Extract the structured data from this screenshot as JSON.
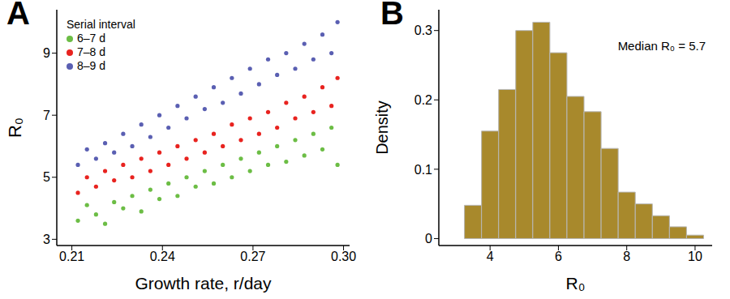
{
  "chart_data": [
    {
      "type": "scatter",
      "title": "A",
      "xlabel": "Growth rate, r/day",
      "ylabel": "R₀",
      "legend": "upper left",
      "legend_title": "Serial interval",
      "xlim": [
        0.205,
        0.302
      ],
      "xticks": [
        0.21,
        0.24,
        0.27,
        {
          "value": 0.3,
          "label": "0.30"
        }
      ],
      "ylim": [
        2.8,
        10.4
      ],
      "yticks": [
        3,
        5,
        7,
        9
      ],
      "series": [
        {
          "name": "6–7 d",
          "color": "#6cbd45",
          "marker": "circle",
          "x": [
            0.212,
            0.215,
            0.218,
            0.221,
            0.224,
            0.227,
            0.23,
            0.233,
            0.236,
            0.239,
            0.242,
            0.245,
            0.248,
            0.251,
            0.254,
            0.257,
            0.26,
            0.263,
            0.266,
            0.269,
            0.272,
            0.275,
            0.278,
            0.281,
            0.284,
            0.287,
            0.29,
            0.293,
            0.296,
            0.298
          ],
          "values": [
            3.6,
            4.1,
            3.8,
            3.5,
            4.2,
            4.0,
            4.4,
            3.9,
            4.6,
            4.3,
            4.8,
            4.4,
            5.0,
            4.7,
            5.2,
            4.8,
            5.4,
            5.0,
            5.6,
            5.2,
            5.8,
            5.4,
            6.0,
            5.5,
            6.2,
            5.7,
            6.4,
            5.9,
            6.6,
            5.4
          ]
        },
        {
          "name": "7–8 d",
          "color": "#e8231f",
          "marker": "circle",
          "x": [
            0.212,
            0.215,
            0.218,
            0.221,
            0.224,
            0.227,
            0.23,
            0.233,
            0.236,
            0.239,
            0.242,
            0.245,
            0.248,
            0.251,
            0.254,
            0.257,
            0.26,
            0.263,
            0.266,
            0.269,
            0.272,
            0.275,
            0.278,
            0.281,
            0.284,
            0.287,
            0.29,
            0.293,
            0.296,
            0.298
          ],
          "values": [
            4.5,
            5.0,
            4.7,
            5.2,
            4.9,
            5.4,
            5.0,
            5.6,
            5.2,
            5.8,
            5.4,
            6.0,
            5.6,
            6.2,
            5.8,
            6.4,
            6.0,
            6.7,
            6.2,
            6.9,
            6.4,
            7.1,
            6.6,
            7.4,
            6.9,
            7.6,
            7.1,
            7.9,
            7.3,
            8.2
          ]
        },
        {
          "name": "8–9 d",
          "color": "#5a5fb2",
          "marker": "circle",
          "x": [
            0.212,
            0.215,
            0.218,
            0.221,
            0.224,
            0.227,
            0.23,
            0.233,
            0.236,
            0.239,
            0.242,
            0.245,
            0.248,
            0.251,
            0.254,
            0.257,
            0.26,
            0.263,
            0.266,
            0.269,
            0.272,
            0.275,
            0.278,
            0.281,
            0.284,
            0.287,
            0.29,
            0.293,
            0.296,
            0.298
          ],
          "values": [
            5.4,
            5.9,
            5.6,
            6.1,
            5.8,
            6.4,
            6.0,
            6.7,
            6.3,
            7.0,
            6.6,
            7.3,
            6.9,
            7.6,
            7.2,
            7.9,
            7.4,
            8.2,
            7.7,
            8.5,
            8.0,
            8.8,
            8.3,
            9.0,
            8.5,
            9.3,
            8.8,
            9.6,
            9.0,
            10.0
          ]
        }
      ]
    },
    {
      "type": "histogram",
      "title": "B",
      "xlabel": "R₀",
      "ylabel": "Density",
      "annotation": "Median R₀ = 5.7",
      "color": "#a8892c",
      "bins": [
        2.75,
        3.25,
        3.75,
        4.25,
        4.75,
        5.25,
        5.75,
        6.25,
        6.75,
        7.25,
        7.75,
        8.25,
        8.75,
        9.25,
        9.75,
        10.25
      ],
      "values": [
        0,
        0.048,
        0.155,
        0.215,
        0.3,
        0.312,
        0.268,
        0.205,
        0.183,
        0.13,
        0.067,
        0.05,
        0.033,
        0.017,
        0.005
      ],
      "xlim": [
        2.5,
        10.5
      ],
      "xticks": [
        4,
        6,
        8,
        10
      ],
      "ylim": [
        -0.01,
        0.33
      ],
      "yticks": [
        0,
        0.1,
        0.2,
        0.3
      ]
    }
  ]
}
